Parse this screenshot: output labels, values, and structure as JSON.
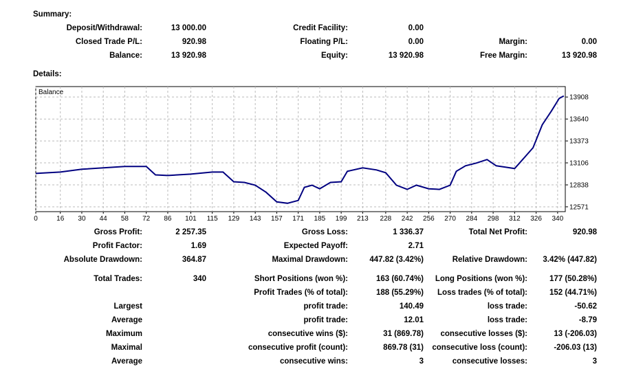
{
  "summary": {
    "title": "Summary:",
    "rows": [
      [
        {
          "label": "Deposit/Withdrawal:",
          "value": "13 000.00"
        },
        {
          "label": "Credit Facility:",
          "value": "0.00"
        },
        null
      ],
      [
        {
          "label": "Closed Trade P/L:",
          "value": "920.98"
        },
        {
          "label": "Floating P/L:",
          "value": "0.00"
        },
        {
          "label": "Margin:",
          "value": "0.00"
        }
      ],
      [
        {
          "label": "Balance:",
          "value": "13 920.98"
        },
        {
          "label": "Equity:",
          "value": "13 920.98"
        },
        {
          "label": "Free Margin:",
          "value": "13 920.98"
        }
      ]
    ]
  },
  "details": {
    "title": "Details:",
    "rows": [
      [
        {
          "label": "Gross Profit:",
          "value": "2 257.35"
        },
        {
          "label": "Gross Loss:",
          "value": "1 336.37"
        },
        {
          "label": "Total Net Profit:",
          "value": "920.98"
        }
      ],
      [
        {
          "label": "Profit Factor:",
          "value": "1.69"
        },
        {
          "label": "Expected Payoff:",
          "value": "2.71"
        },
        null
      ],
      [
        {
          "label": "Absolute Drawdown:",
          "value": "364.87"
        },
        {
          "label": "Maximal Drawdown:",
          "value": "447.82 (3.42%)"
        },
        {
          "label": "Relative Drawdown:",
          "value": "3.42% (447.82)"
        }
      ],
      [
        {
          "label": "Total Trades:",
          "value": "340"
        },
        {
          "label": "Short Positions (won %):",
          "value": "163 (60.74%)"
        },
        {
          "label": "Long Positions (won %):",
          "value": "177 (50.28%)"
        }
      ],
      [
        null,
        {
          "label": "Profit Trades (% of total):",
          "value": "188 (55.29%)"
        },
        {
          "label": "Loss trades (% of total):",
          "value": "152 (44.71%)"
        }
      ],
      [
        {
          "label": "Largest"
        },
        {
          "label": "profit trade:",
          "value": "140.49"
        },
        {
          "label": "loss trade:",
          "value": "-50.62"
        }
      ],
      [
        {
          "label": "Average"
        },
        {
          "label": "profit trade:",
          "value": "12.01"
        },
        {
          "label": "loss trade:",
          "value": "-8.79"
        }
      ],
      [
        {
          "label": "Maximum"
        },
        {
          "label": "consecutive wins ($):",
          "value": "31 (869.78)"
        },
        {
          "label": "consecutive losses ($):",
          "value": "13 (-206.03)"
        }
      ],
      [
        {
          "label": "Maximal"
        },
        {
          "label": "consecutive profit (count):",
          "value": "869.78 (31)"
        },
        {
          "label": "consecutive loss (count):",
          "value": "-206.03 (13)"
        }
      ],
      [
        {
          "label": "Average"
        },
        {
          "label": "consecutive wins:",
          "value": "3"
        },
        {
          "label": "consecutive losses:",
          "value": "3"
        }
      ]
    ]
  },
  "chart_data": {
    "type": "line",
    "grid": true,
    "x": [
      0,
      16,
      30,
      58,
      72,
      78,
      86,
      101,
      115,
      122,
      129,
      136,
      143,
      150,
      157,
      164,
      171,
      175,
      180,
      185,
      192,
      199,
      203,
      213,
      222,
      228,
      235,
      242,
      248,
      256,
      263,
      270,
      274,
      280,
      287,
      294,
      300,
      306,
      312,
      316,
      324,
      330,
      336,
      341,
      344
    ],
    "series": [
      {
        "name": "Balance",
        "color": "#000080",
        "values": [
          12977,
          12994,
          13028,
          13062,
          13062,
          12960,
          12952,
          12969,
          12994,
          12994,
          12876,
          12868,
          12834,
          12749,
          12631,
          12614,
          12648,
          12808,
          12834,
          12791,
          12868,
          12876,
          13003,
          13045,
          13020,
          12986,
          12834,
          12783,
          12834,
          12791,
          12783,
          12834,
          13003,
          13070,
          13104,
          13146,
          13070,
          13053,
          13037,
          13121,
          13290,
          13570,
          13739,
          13891,
          13921
        ]
      }
    ],
    "xlim": [
      0,
      345
    ],
    "ylim": [
      12512,
      14035
    ],
    "xticks": [
      0,
      16,
      30,
      44,
      58,
      72,
      86,
      101,
      115,
      129,
      143,
      157,
      171,
      185,
      199,
      213,
      228,
      242,
      256,
      270,
      284,
      298,
      312,
      326,
      340
    ],
    "yticks": [
      12571,
      12838,
      13106,
      13373,
      13640,
      13908
    ]
  }
}
